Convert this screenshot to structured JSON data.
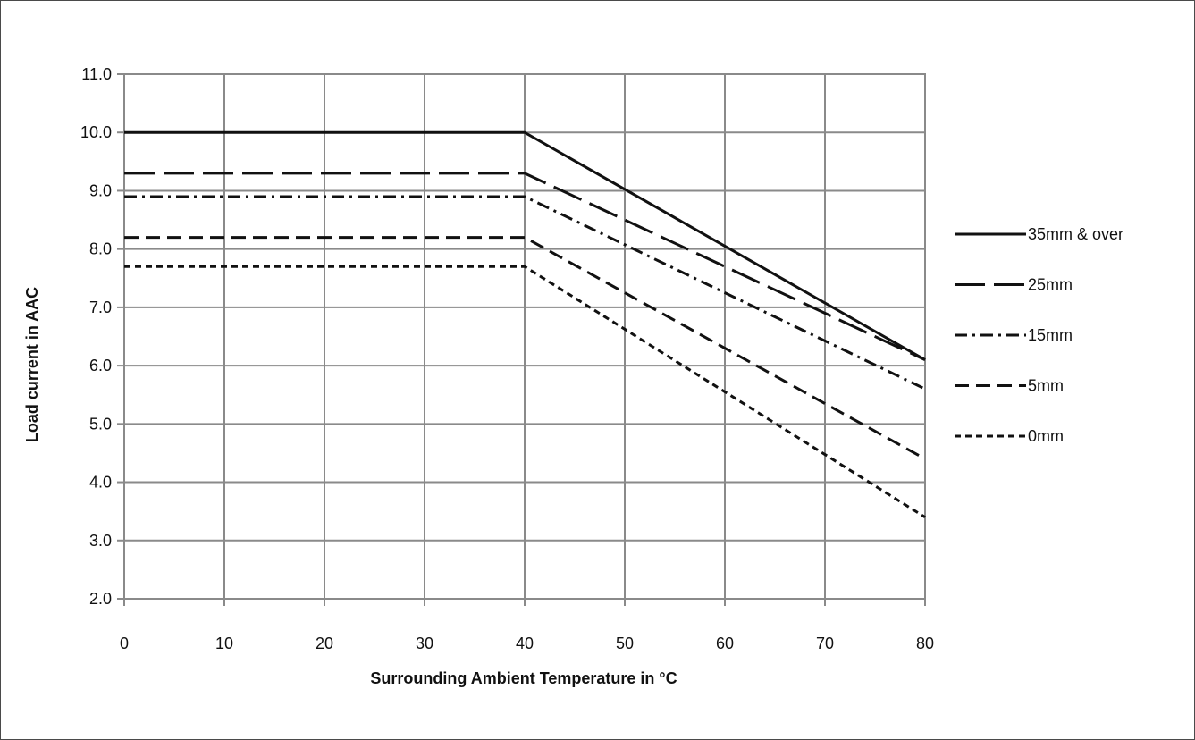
{
  "chart_data": {
    "type": "line",
    "xlabel": "Surrounding Ambient Temperature in °C",
    "ylabel": "Load current in AAC",
    "xlim": [
      0,
      80
    ],
    "ylim": [
      2.0,
      11.0
    ],
    "x_ticks": [
      "0",
      "10",
      "20",
      "30",
      "40",
      "50",
      "60",
      "70",
      "80"
    ],
    "y_ticks": [
      "2.0",
      "3.0",
      "4.0",
      "5.0",
      "6.0",
      "7.0",
      "8.0",
      "9.0",
      "10.0",
      "11.0"
    ],
    "grid": true,
    "legend_position": "right",
    "line_color": "#111111",
    "grid_color": "#8a8a8a",
    "series": [
      {
        "name": "35mm & over",
        "dash": "solid",
        "points": [
          [
            0,
            10.0
          ],
          [
            40,
            10.0
          ],
          [
            80,
            6.1
          ]
        ]
      },
      {
        "name": "25mm",
        "dash": "long-dash",
        "points": [
          [
            0,
            9.3
          ],
          [
            40,
            9.3
          ],
          [
            80,
            6.1
          ]
        ]
      },
      {
        "name": "15mm",
        "dash": "dash-dot",
        "points": [
          [
            0,
            8.9
          ],
          [
            40,
            8.9
          ],
          [
            80,
            5.6
          ]
        ]
      },
      {
        "name": "5mm",
        "dash": "dash",
        "points": [
          [
            0,
            8.2
          ],
          [
            40,
            8.2
          ],
          [
            80,
            4.4
          ]
        ]
      },
      {
        "name": "0mm",
        "dash": "short-dash",
        "points": [
          [
            0,
            7.7
          ],
          [
            40,
            7.7
          ],
          [
            80,
            3.4
          ]
        ]
      }
    ]
  }
}
